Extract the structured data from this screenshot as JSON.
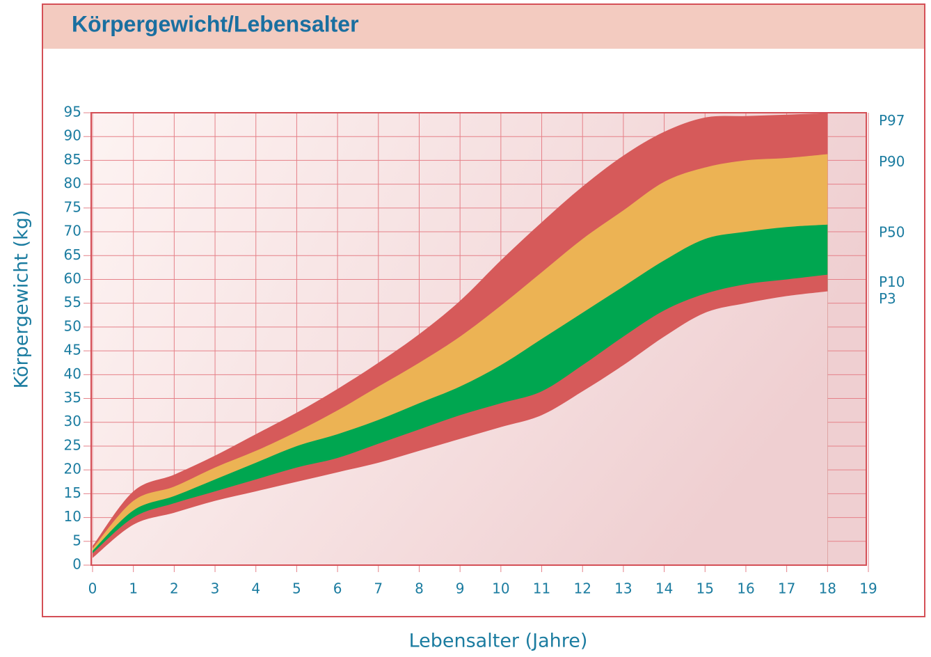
{
  "chart_data": {
    "type": "area",
    "title": "Körpergewicht/Lebensalter",
    "x_label": "Lebensalter (Jahre)",
    "y_label": "Körpergewicht  (kg)",
    "x": [
      0,
      1,
      2,
      3,
      4,
      5,
      6,
      7,
      8,
      9,
      10,
      11,
      12,
      13,
      14,
      15,
      16,
      17,
      18
    ],
    "series": [
      {
        "name": "P97",
        "color": "#d65a5a",
        "values": [
          4,
          15.5,
          19,
          23,
          27.5,
          32,
          37,
          42.5,
          48.5,
          55.5,
          64,
          72,
          79.5,
          86,
          91,
          94,
          94.3,
          94.6,
          94.9
        ]
      },
      {
        "name": "P90",
        "color": "#ecb354",
        "values": [
          3.5,
          13.5,
          16.5,
          20.5,
          24,
          28,
          32.5,
          37.5,
          42.5,
          48,
          54.5,
          61.5,
          68.5,
          74.5,
          80.5,
          83.5,
          85,
          85.5,
          86.3
        ]
      },
      {
        "name": "P50",
        "color": "#00a650",
        "values": [
          3,
          11.5,
          14.5,
          18,
          21.5,
          25,
          27.5,
          30.5,
          34,
          37.5,
          42,
          47.5,
          53,
          58.5,
          64,
          68.5,
          70,
          71,
          71.5
        ]
      },
      {
        "name": "P10",
        "color": "#d65a5a",
        "values": [
          2.5,
          10,
          13,
          15.5,
          18,
          20.5,
          22.5,
          25.5,
          28.5,
          31.5,
          34,
          36.5,
          42,
          48,
          53.5,
          57,
          59,
          60,
          61
        ]
      },
      {
        "name": "P3",
        "values": [
          1.5,
          8.5,
          11,
          13.5,
          15.5,
          17.5,
          19.5,
          21.5,
          24,
          26.5,
          29,
          31.5,
          36.5,
          42,
          48,
          53,
          55,
          56.5,
          57.5
        ]
      }
    ],
    "xlim": [
      0,
      19
    ],
    "xticks": [
      0,
      1,
      2,
      3,
      4,
      5,
      6,
      7,
      8,
      9,
      10,
      11,
      12,
      13,
      14,
      15,
      16,
      17,
      18,
      19
    ],
    "ylim": [
      0,
      95
    ],
    "yticks": [
      0,
      5,
      10,
      15,
      20,
      25,
      30,
      35,
      40,
      45,
      50,
      55,
      60,
      65,
      70,
      75,
      80,
      85,
      90,
      95
    ],
    "grid": true
  }
}
